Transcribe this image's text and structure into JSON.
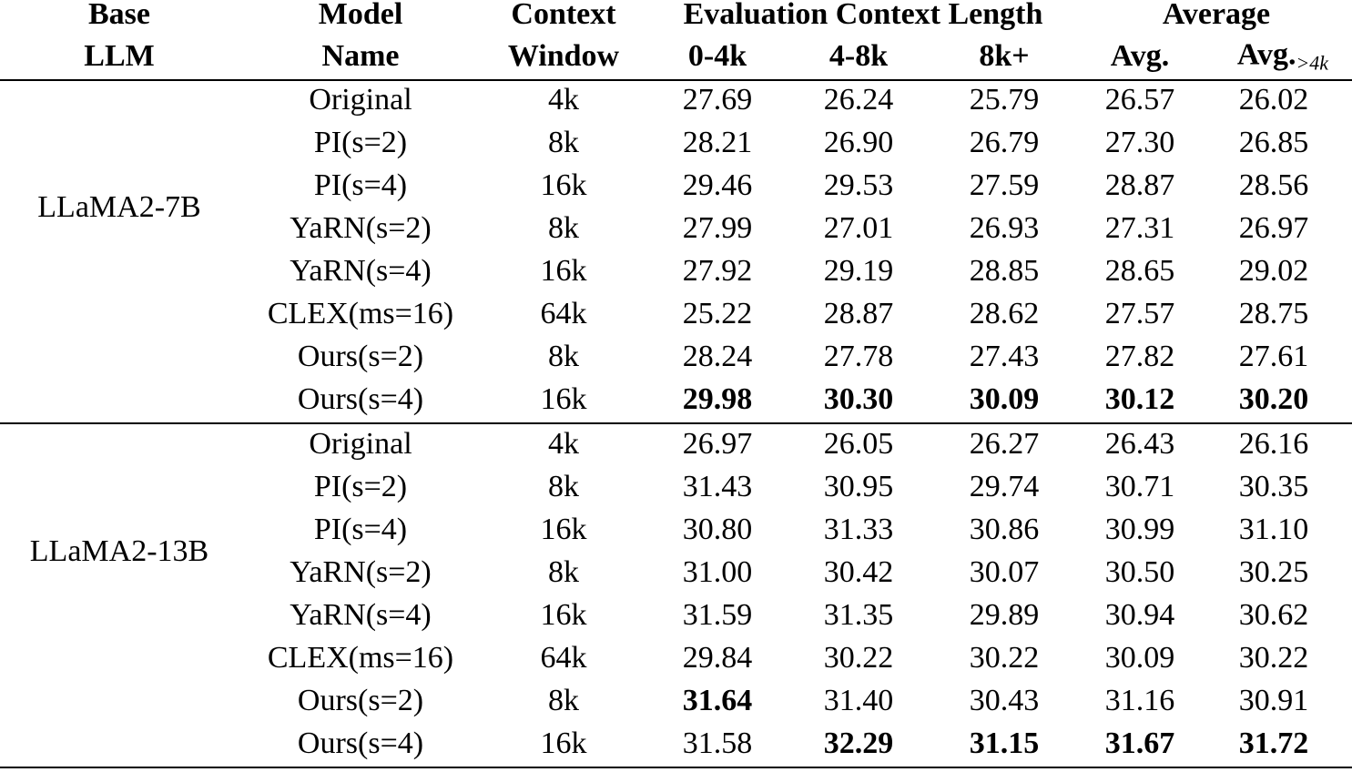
{
  "header": {
    "row1": [
      "Base",
      "Model",
      "Context",
      "Evaluation Context Length",
      "Average"
    ],
    "row2": [
      "LLM",
      "Name",
      "Window",
      "0-4k",
      "4-8k",
      "8k+",
      "Avg.",
      "Avg."
    ],
    "last_sub": ">4k"
  },
  "groups": [
    {
      "base": "LLaMA2-7B",
      "rows": [
        {
          "model": "Original",
          "window": "4k",
          "values": [
            "27.69",
            "26.24",
            "25.79",
            "26.57",
            "26.02"
          ],
          "bold": []
        },
        {
          "model": "PI(s=2)",
          "window": "8k",
          "values": [
            "28.21",
            "26.90",
            "26.79",
            "27.30",
            "26.85"
          ],
          "bold": []
        },
        {
          "model": "PI(s=4)",
          "window": "16k",
          "values": [
            "29.46",
            "29.53",
            "27.59",
            "28.87",
            "28.56"
          ],
          "bold": []
        },
        {
          "model": "YaRN(s=2)",
          "window": "8k",
          "values": [
            "27.99",
            "27.01",
            "26.93",
            "27.31",
            "26.97"
          ],
          "bold": []
        },
        {
          "model": "YaRN(s=4)",
          "window": "16k",
          "values": [
            "27.92",
            "29.19",
            "28.85",
            "28.65",
            "29.02"
          ],
          "bold": []
        },
        {
          "model": "CLEX(ms=16)",
          "window": "64k",
          "values": [
            "25.22",
            "28.87",
            "28.62",
            "27.57",
            "28.75"
          ],
          "bold": []
        },
        {
          "model": "Ours(s=2)",
          "window": "8k",
          "values": [
            "28.24",
            "27.78",
            "27.43",
            "27.82",
            "27.61"
          ],
          "bold": []
        },
        {
          "model": "Ours(s=4)",
          "window": "16k",
          "values": [
            "29.98",
            "30.30",
            "30.09",
            "30.12",
            "30.20"
          ],
          "bold": [
            0,
            1,
            2,
            3,
            4
          ]
        }
      ]
    },
    {
      "base": "LLaMA2-13B",
      "rows": [
        {
          "model": "Original",
          "window": "4k",
          "values": [
            "26.97",
            "26.05",
            "26.27",
            "26.43",
            "26.16"
          ],
          "bold": []
        },
        {
          "model": "PI(s=2)",
          "window": "8k",
          "values": [
            "31.43",
            "30.95",
            "29.74",
            "30.71",
            "30.35"
          ],
          "bold": []
        },
        {
          "model": "PI(s=4)",
          "window": "16k",
          "values": [
            "30.80",
            "31.33",
            "30.86",
            "30.99",
            "31.10"
          ],
          "bold": []
        },
        {
          "model": "YaRN(s=2)",
          "window": "8k",
          "values": [
            "31.00",
            "30.42",
            "30.07",
            "30.50",
            "30.25"
          ],
          "bold": []
        },
        {
          "model": "YaRN(s=4)",
          "window": "16k",
          "values": [
            "31.59",
            "31.35",
            "29.89",
            "30.94",
            "30.62"
          ],
          "bold": []
        },
        {
          "model": "CLEX(ms=16)",
          "window": "64k",
          "values": [
            "29.84",
            "30.22",
            "30.22",
            "30.09",
            "30.22"
          ],
          "bold": []
        },
        {
          "model": "Ours(s=2)",
          "window": "8k",
          "values": [
            "31.64",
            "31.40",
            "30.43",
            "31.16",
            "30.91"
          ],
          "bold": [
            0
          ]
        },
        {
          "model": "Ours(s=4)",
          "window": "16k",
          "values": [
            "31.58",
            "32.29",
            "31.15",
            "31.67",
            "31.72"
          ],
          "bold": [
            1,
            2,
            3,
            4
          ]
        }
      ]
    }
  ]
}
